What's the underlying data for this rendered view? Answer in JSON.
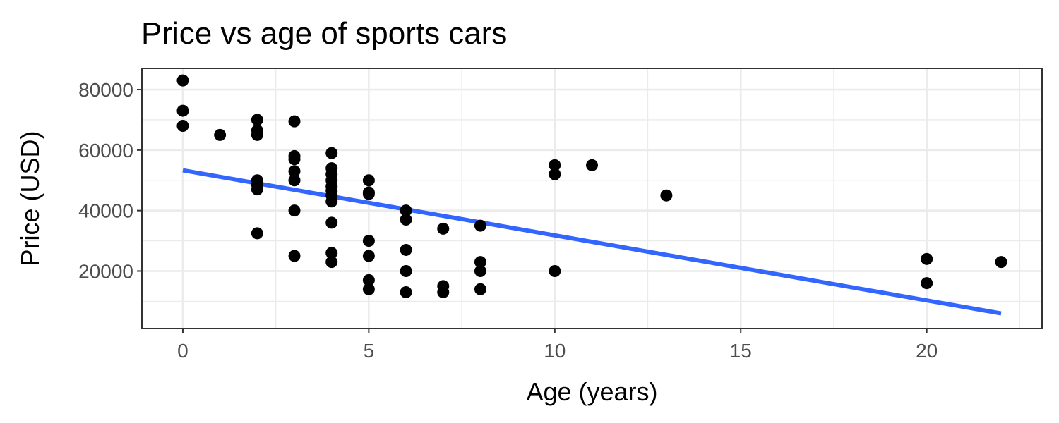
{
  "chart_data": {
    "type": "scatter",
    "title": "Price vs age of sports cars",
    "xlabel": "Age (years)",
    "ylabel": "Price (USD)",
    "xlim": [
      -1.1,
      23.1
    ],
    "ylim": [
      1000,
      87000
    ],
    "x_ticks": [
      0,
      5,
      10,
      15,
      20
    ],
    "y_ticks": [
      20000,
      40000,
      60000,
      80000
    ],
    "x_tick_labels": [
      "0",
      "5",
      "10",
      "15",
      "20"
    ],
    "y_tick_labels": [
      "20000",
      "40000",
      "60000",
      "80000"
    ],
    "grid": true,
    "legend": "none",
    "colors": {
      "points": "#000000",
      "fit_line": "#3366FF",
      "grid": "#ebebeb",
      "panel_border": "#333333"
    },
    "points": [
      {
        "x": 0,
        "y": 83000
      },
      {
        "x": 0,
        "y": 73000
      },
      {
        "x": 0,
        "y": 68000
      },
      {
        "x": 1,
        "y": 65000
      },
      {
        "x": 2,
        "y": 70000
      },
      {
        "x": 2,
        "y": 66500
      },
      {
        "x": 2,
        "y": 65000
      },
      {
        "x": 2,
        "y": 50000
      },
      {
        "x": 2,
        "y": 48500
      },
      {
        "x": 2,
        "y": 47000
      },
      {
        "x": 2,
        "y": 32500
      },
      {
        "x": 3,
        "y": 69500
      },
      {
        "x": 3,
        "y": 58000
      },
      {
        "x": 3,
        "y": 57000
      },
      {
        "x": 3,
        "y": 53000
      },
      {
        "x": 3,
        "y": 50000
      },
      {
        "x": 3,
        "y": 40000
      },
      {
        "x": 3,
        "y": 25000
      },
      {
        "x": 4,
        "y": 59000
      },
      {
        "x": 4,
        "y": 54000
      },
      {
        "x": 4,
        "y": 52000
      },
      {
        "x": 4,
        "y": 50000
      },
      {
        "x": 4,
        "y": 48000
      },
      {
        "x": 4,
        "y": 46500
      },
      {
        "x": 4,
        "y": 45000
      },
      {
        "x": 4,
        "y": 43000
      },
      {
        "x": 4,
        "y": 36000
      },
      {
        "x": 4,
        "y": 26000
      },
      {
        "x": 4,
        "y": 23000
      },
      {
        "x": 5,
        "y": 50000
      },
      {
        "x": 5,
        "y": 46000
      },
      {
        "x": 5,
        "y": 45500
      },
      {
        "x": 5,
        "y": 30000
      },
      {
        "x": 5,
        "y": 25000
      },
      {
        "x": 5,
        "y": 17000
      },
      {
        "x": 5,
        "y": 14000
      },
      {
        "x": 6,
        "y": 40000
      },
      {
        "x": 6,
        "y": 37000
      },
      {
        "x": 6,
        "y": 27000
      },
      {
        "x": 6,
        "y": 20000
      },
      {
        "x": 6,
        "y": 13000
      },
      {
        "x": 7,
        "y": 34000
      },
      {
        "x": 7,
        "y": 15000
      },
      {
        "x": 7,
        "y": 13000
      },
      {
        "x": 8,
        "y": 35000
      },
      {
        "x": 8,
        "y": 23000
      },
      {
        "x": 8,
        "y": 20000
      },
      {
        "x": 8,
        "y": 14000
      },
      {
        "x": 10,
        "y": 55000
      },
      {
        "x": 10,
        "y": 52000
      },
      {
        "x": 10,
        "y": 20000
      },
      {
        "x": 11,
        "y": 55000
      },
      {
        "x": 13,
        "y": 45000
      },
      {
        "x": 20,
        "y": 24000
      },
      {
        "x": 20,
        "y": 16000
      },
      {
        "x": 22,
        "y": 23000
      }
    ],
    "fit_line": {
      "x": [
        0,
        22
      ],
      "y": [
        53300,
        6000
      ]
    }
  }
}
